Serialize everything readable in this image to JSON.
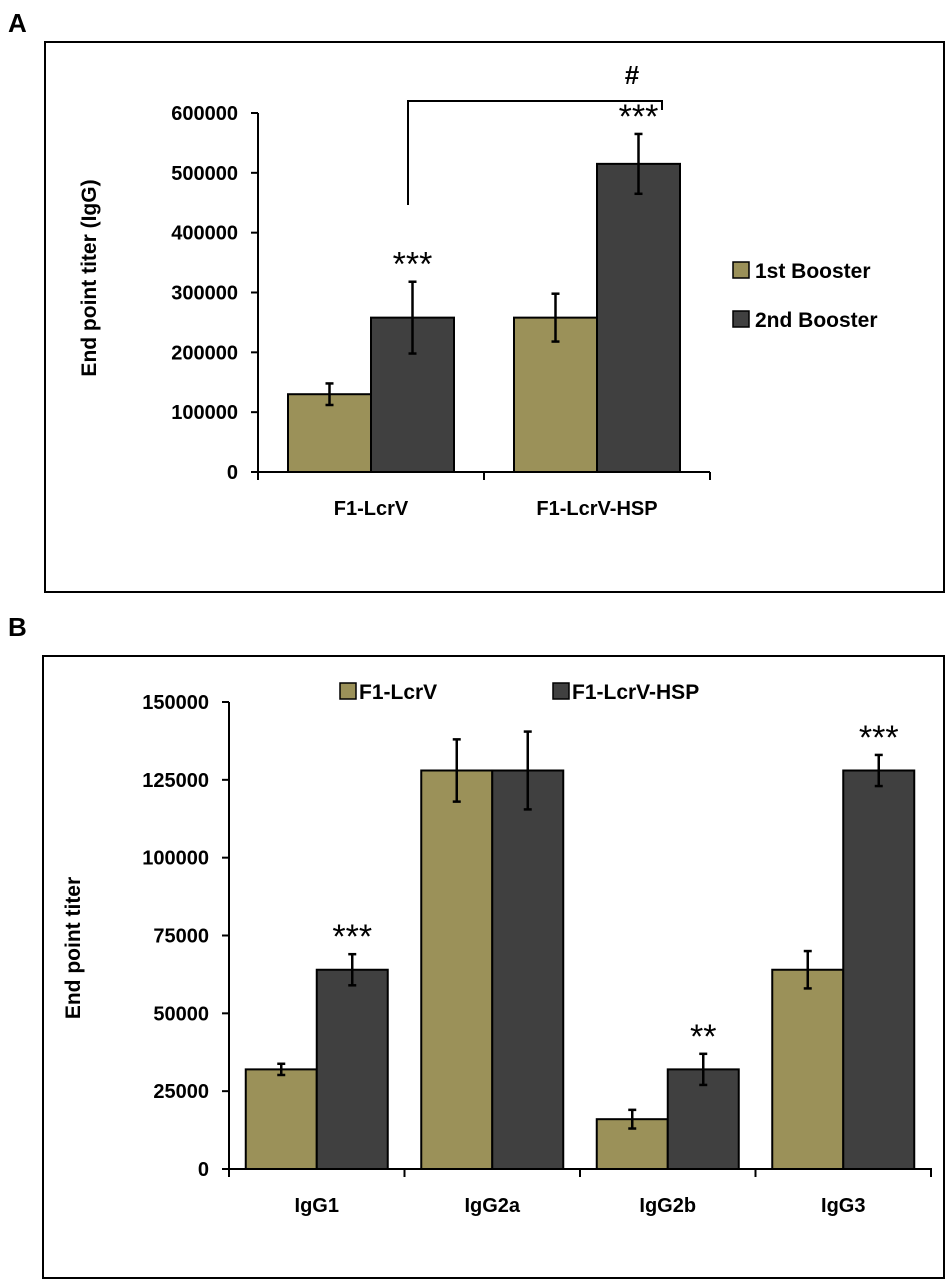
{
  "colors": {
    "series1": "#9b9159",
    "series2": "#404040",
    "frame": "#000000"
  },
  "chart_data": [
    {
      "panel": "A",
      "type": "bar",
      "title": "",
      "xlabel": "",
      "ylabel": "End point titer (IgG)",
      "ylim": [
        0,
        600000
      ],
      "yticks": [
        0,
        100000,
        200000,
        300000,
        400000,
        500000,
        600000
      ],
      "categories": [
        "F1-LcrV",
        "F1-LcrV-HSP"
      ],
      "legend_position": "right",
      "series": [
        {
          "name": "1st Booster",
          "values": [
            130000,
            258000
          ],
          "errors": [
            18000,
            40000
          ],
          "annotations": [
            "",
            ""
          ]
        },
        {
          "name": "2nd Booster",
          "values": [
            258000,
            515000
          ],
          "errors": [
            60000,
            50000
          ],
          "annotations": [
            "***",
            "***"
          ]
        }
      ],
      "bracket_label": "#"
    },
    {
      "panel": "B",
      "type": "bar",
      "title": "",
      "xlabel": "",
      "ylabel": "End point titer",
      "ylim": [
        0,
        150000
      ],
      "yticks": [
        0,
        25000,
        50000,
        75000,
        100000,
        125000,
        150000
      ],
      "categories": [
        "IgG1",
        "IgG2a",
        "IgG2b",
        "IgG3"
      ],
      "legend_position": "top",
      "series": [
        {
          "name": "F1-LcrV",
          "values": [
            32000,
            128000,
            16000,
            64000
          ],
          "errors": [
            1800,
            10000,
            3000,
            6000
          ],
          "annotations": [
            "",
            "",
            "",
            ""
          ]
        },
        {
          "name": "F1-LcrV-HSP",
          "values": [
            64000,
            128000,
            32000,
            128000
          ],
          "errors": [
            5000,
            12500,
            5000,
            5000
          ],
          "annotations": [
            "***",
            "",
            "**",
            "***"
          ]
        }
      ]
    }
  ]
}
